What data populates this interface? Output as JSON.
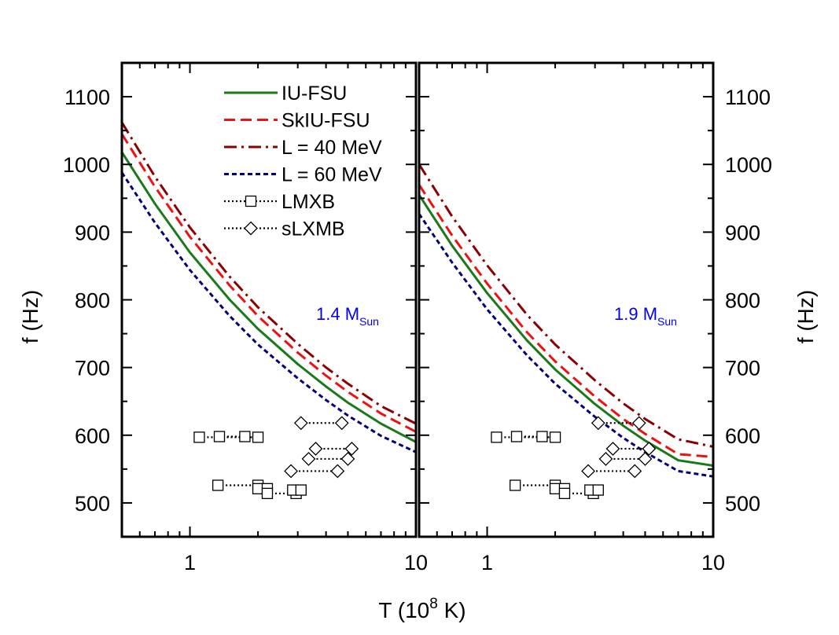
{
  "figure": {
    "xlabel_main": "T (10",
    "xlabel_exp": "8",
    "xlabel_tail": " K)",
    "ylabel_left": "f (Hz)",
    "ylabel_right": "f (Hz)"
  },
  "legend": [
    {
      "label": "IU-FSU",
      "color": "#1a7a1a",
      "style": "solid"
    },
    {
      "label": "SkIU-FSU",
      "color": "#ee1111",
      "style": "dash"
    },
    {
      "label": "L = 40 MeV",
      "color": "#8b0000",
      "style": "dashdot"
    },
    {
      "label": "L = 60 MeV",
      "color": "#00007a",
      "style": "shortdash"
    },
    {
      "label": "LMXB",
      "color": "#000000",
      "style": "dotted-square"
    },
    {
      "label": "sLXMB",
      "color": "#000000",
      "style": "dotted-diamond"
    }
  ],
  "chart_data": [
    {
      "type": "line",
      "panel": "left",
      "annotation": {
        "main": "1.4 M",
        "sub": "Sun",
        "color": "#0000ee"
      },
      "x_scale": "log",
      "xlim": [
        0.5,
        10
      ],
      "ylim": [
        450,
        1150
      ],
      "x_ticks": [
        1,
        10
      ],
      "x_tick_labels": [
        "1",
        "10"
      ],
      "y_ticks": [
        500,
        600,
        700,
        800,
        900,
        1000,
        1100
      ],
      "y_tick_labels": [
        "500",
        "600",
        "700",
        "800",
        "900",
        "1000",
        "1100"
      ],
      "series": [
        {
          "name": "IU-FSU",
          "x": [
            0.5,
            0.7,
            1,
            1.5,
            2,
            3,
            4,
            5,
            7,
            10
          ],
          "y": [
            1018,
            942,
            870,
            800,
            757,
            705,
            672,
            648,
            617,
            590
          ]
        },
        {
          "name": "SkIU-FSU",
          "x": [
            0.5,
            0.7,
            1,
            1.5,
            2,
            3,
            4,
            5,
            7,
            10
          ],
          "y": [
            1045,
            967,
            893,
            821,
            776,
            722,
            688,
            664,
            632,
            605
          ]
        },
        {
          "name": "L = 40 MeV",
          "x": [
            0.5,
            0.7,
            1,
            1.5,
            2,
            3,
            4,
            5,
            7,
            10
          ],
          "y": [
            1062,
            982,
            907,
            834,
            789,
            735,
            700,
            676,
            643,
            617
          ]
        },
        {
          "name": "L = 60 MeV",
          "x": [
            0.5,
            0.7,
            1,
            1.5,
            2,
            3,
            4,
            5,
            7,
            10
          ],
          "y": [
            988,
            914,
            844,
            776,
            734,
            684,
            652,
            629,
            599,
            575
          ]
        }
      ],
      "lmxb": [
        {
          "x": [
            1.1,
            2.0
          ],
          "y": 597
        },
        {
          "x": [
            1.35,
            1.75
          ],
          "y": 598
        },
        {
          "x": [
            1.33,
            2.0
          ],
          "y": 526
        },
        {
          "x": [
            2.0,
            2.2
          ],
          "y": 521
        },
        {
          "x": [
            2.2,
            2.95
          ],
          "y": 514
        },
        {
          "x": [
            2.85,
            3.1
          ],
          "y": 519
        }
      ],
      "slxmb": [
        {
          "x": [
            3.1,
            4.7
          ],
          "y": 618
        },
        {
          "x": [
            3.6,
            5.2
          ],
          "y": 580
        },
        {
          "x": [
            3.35,
            5.0
          ],
          "y": 565
        },
        {
          "x": [
            2.8,
            4.5
          ],
          "y": 547
        }
      ]
    },
    {
      "type": "line",
      "panel": "right",
      "annotation": {
        "main": "1.9 M",
        "sub": "Sun",
        "color": "#0000ee"
      },
      "x_scale": "log",
      "xlim": [
        0.5,
        10
      ],
      "ylim": [
        450,
        1150
      ],
      "x_ticks": [
        1,
        10
      ],
      "x_tick_labels": [
        "1",
        "10"
      ],
      "y_ticks": [
        500,
        600,
        700,
        800,
        900,
        1000,
        1100
      ],
      "y_tick_labels": [
        "500",
        "600",
        "700",
        "800",
        "900",
        "1000",
        "1100"
      ],
      "series": [
        {
          "name": "IU-FSU",
          "x": [
            0.5,
            0.7,
            1,
            1.5,
            2,
            3,
            4,
            5,
            7,
            10
          ],
          "y": [
            955,
            880,
            810,
            740,
            697,
            646,
            614,
            592,
            563,
            555
          ]
        },
        {
          "name": "SkIU-FSU",
          "x": [
            0.5,
            0.7,
            1,
            1.5,
            2,
            3,
            4,
            5,
            7,
            10
          ],
          "y": [
            970,
            895,
            824,
            752,
            709,
            657,
            624,
            602,
            572,
            568
          ]
        },
        {
          "name": "L = 40 MeV",
          "x": [
            0.5,
            0.7,
            1,
            1.5,
            2,
            3,
            4,
            5,
            7,
            10
          ],
          "y": [
            1000,
            923,
            851,
            778,
            734,
            681,
            647,
            624,
            594,
            583
          ]
        },
        {
          "name": "L = 60 MeV",
          "x": [
            0.5,
            0.7,
            1,
            1.5,
            2,
            3,
            4,
            5,
            7,
            10
          ],
          "y": [
            927,
            855,
            786,
            718,
            676,
            627,
            596,
            575,
            547,
            539
          ]
        }
      ],
      "lmxb": [
        {
          "x": [
            1.1,
            2.0
          ],
          "y": 597
        },
        {
          "x": [
            1.35,
            1.75
          ],
          "y": 598
        },
        {
          "x": [
            1.33,
            2.0
          ],
          "y": 526
        },
        {
          "x": [
            2.0,
            2.2
          ],
          "y": 521
        },
        {
          "x": [
            2.2,
            2.95
          ],
          "y": 514
        },
        {
          "x": [
            2.85,
            3.1
          ],
          "y": 519
        }
      ],
      "slxmb": [
        {
          "x": [
            3.1,
            4.7
          ],
          "y": 618
        },
        {
          "x": [
            3.6,
            5.2
          ],
          "y": 580
        },
        {
          "x": [
            3.35,
            5.0
          ],
          "y": 565
        },
        {
          "x": [
            2.8,
            4.5
          ],
          "y": 547
        }
      ]
    }
  ]
}
